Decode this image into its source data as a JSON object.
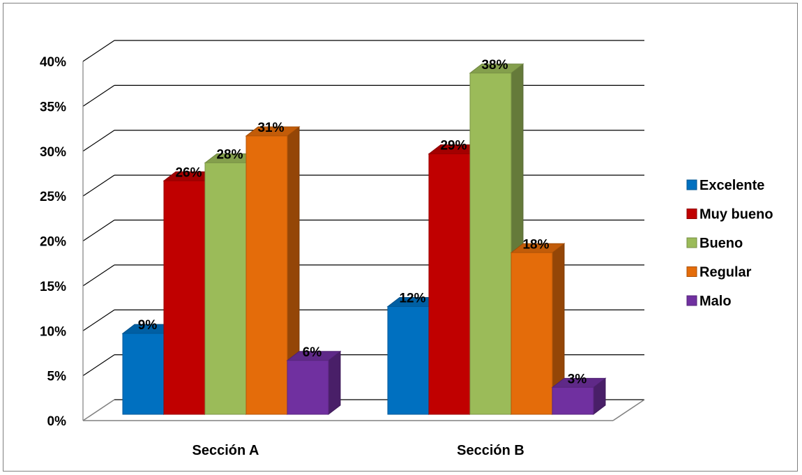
{
  "chart_data": {
    "type": "bar",
    "title": "",
    "xlabel": "",
    "ylabel": "",
    "ylim": [
      0,
      40
    ],
    "y_ticks": [
      "0%",
      "5%",
      "10%",
      "15%",
      "20%",
      "25%",
      "30%",
      "35%",
      "40%"
    ],
    "categories": [
      "Sección A",
      "Sección B"
    ],
    "grid": true,
    "legend_position": "right",
    "style": "3d-clustered-column",
    "series": [
      {
        "name": "Excelente",
        "color": "#0070C0",
        "values": [
          9,
          12
        ],
        "labels": [
          "9%",
          "12%"
        ]
      },
      {
        "name": "Muy bueno",
        "color": "#C00000",
        "values": [
          26,
          29
        ],
        "labels": [
          "26%",
          "29%"
        ]
      },
      {
        "name": "Bueno",
        "color": "#9BBB59",
        "values": [
          28,
          38
        ],
        "labels": [
          "28%",
          "38%"
        ]
      },
      {
        "name": "Regular",
        "color": "#E46C0A",
        "values": [
          31,
          18
        ],
        "labels": [
          "31%",
          "18%"
        ]
      },
      {
        "name": "Malo",
        "color": "#7030A0",
        "values": [
          6,
          3
        ],
        "labels": [
          "6%",
          "3%"
        ]
      }
    ]
  }
}
